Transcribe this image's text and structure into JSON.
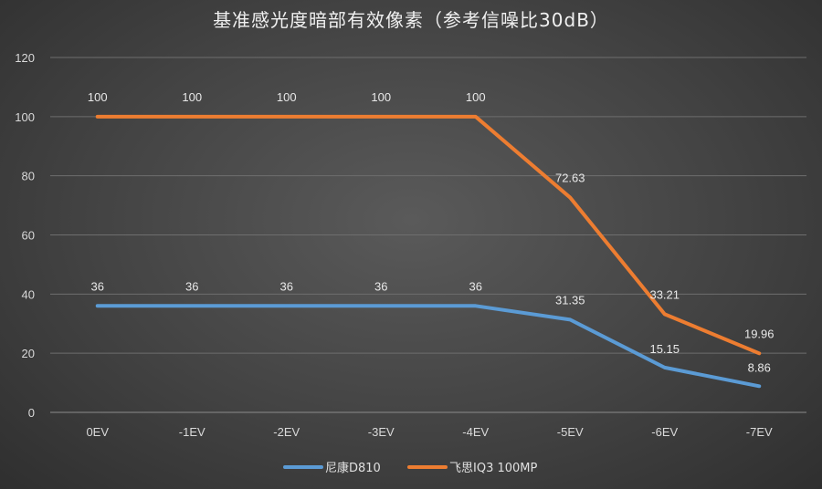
{
  "chart_data": {
    "type": "line",
    "title": "基准感光度暗部有效像素（参考信噪比30dB）",
    "categories": [
      "0EV",
      "-1EV",
      "-2EV",
      "-3EV",
      "-4EV",
      "-5EV",
      "-6EV",
      "-7EV"
    ],
    "ylim": [
      0,
      120
    ],
    "yticks": [
      0,
      20,
      40,
      60,
      80,
      100,
      120
    ],
    "grid": true,
    "legend_position": "bottom",
    "series": [
      {
        "name": "尼康D810",
        "color": "#5b9bd5",
        "values": [
          36,
          36,
          36,
          36,
          36,
          31.35,
          15.15,
          8.86
        ],
        "labels": [
          "36",
          "36",
          "36",
          "36",
          "36",
          "31.35",
          "15.15",
          "8.86"
        ]
      },
      {
        "name": "飞思IQ3 100MP",
        "color": "#ed7d31",
        "values": [
          100,
          100,
          100,
          100,
          100,
          72.63,
          33.21,
          19.96
        ],
        "labels": [
          "100",
          "100",
          "100",
          "100",
          "100",
          "72.63",
          "33.21",
          "19.96"
        ]
      }
    ]
  }
}
